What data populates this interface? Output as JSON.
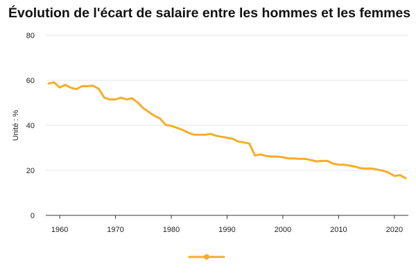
{
  "chart_data": {
    "type": "line",
    "title": "Évolution de l'écart de salaire entre les hommes et les femmes",
    "xlabel": "",
    "ylabel": "Unité : %",
    "xlim": [
      1957.5,
      2022.5
    ],
    "ylim": [
      0,
      80
    ],
    "x_ticks": [
      1960,
      1970,
      1980,
      1990,
      2000,
      2010,
      2020
    ],
    "y_ticks": [
      0,
      20,
      40,
      60,
      80
    ],
    "grid": "horizontal",
    "legend": "bottom-center",
    "series": [
      {
        "name": "",
        "color": "#f5ae27",
        "points": [
          [
            1958,
            58.6
          ],
          [
            1959,
            59.1
          ],
          [
            1960,
            56.8
          ],
          [
            1961,
            58.0
          ],
          [
            1962,
            56.7
          ],
          [
            1963,
            56.1
          ],
          [
            1964,
            57.4
          ],
          [
            1965,
            57.4
          ],
          [
            1966,
            57.6
          ],
          [
            1967,
            56.2
          ],
          [
            1968,
            52.3
          ],
          [
            1969,
            51.5
          ],
          [
            1970,
            51.5
          ],
          [
            1971,
            52.3
          ],
          [
            1972,
            51.5
          ],
          [
            1973,
            52.0
          ],
          [
            1974,
            50.1
          ],
          [
            1975,
            47.6
          ],
          [
            1976,
            45.9
          ],
          [
            1977,
            44.2
          ],
          [
            1978,
            43.0
          ],
          [
            1979,
            40.2
          ],
          [
            1980,
            39.8
          ],
          [
            1981,
            38.9
          ],
          [
            1982,
            38.0
          ],
          [
            1983,
            36.8
          ],
          [
            1984,
            35.9
          ],
          [
            1985,
            35.8
          ],
          [
            1986,
            35.8
          ],
          [
            1987,
            36.2
          ],
          [
            1988,
            35.4
          ],
          [
            1989,
            34.9
          ],
          [
            1990,
            34.5
          ],
          [
            1991,
            34.0
          ],
          [
            1992,
            32.8
          ],
          [
            1993,
            32.4
          ],
          [
            1994,
            31.9
          ],
          [
            1995,
            26.6
          ],
          [
            1996,
            27.1
          ],
          [
            1997,
            26.4
          ],
          [
            1998,
            26.1
          ],
          [
            1999,
            26.1
          ],
          [
            2000,
            25.8
          ],
          [
            2001,
            25.3
          ],
          [
            2002,
            25.3
          ],
          [
            2003,
            25.1
          ],
          [
            2004,
            25.1
          ],
          [
            2005,
            24.6
          ],
          [
            2006,
            24.0
          ],
          [
            2007,
            24.2
          ],
          [
            2008,
            24.2
          ],
          [
            2009,
            23.0
          ],
          [
            2010,
            22.5
          ],
          [
            2011,
            22.5
          ],
          [
            2012,
            22.1
          ],
          [
            2013,
            21.6
          ],
          [
            2014,
            20.9
          ],
          [
            2015,
            20.8
          ],
          [
            2016,
            20.8
          ],
          [
            2017,
            20.3
          ],
          [
            2018,
            19.8
          ],
          [
            2019,
            18.9
          ],
          [
            2020,
            17.5
          ],
          [
            2021,
            17.9
          ],
          [
            2022,
            16.5
          ]
        ]
      }
    ]
  }
}
